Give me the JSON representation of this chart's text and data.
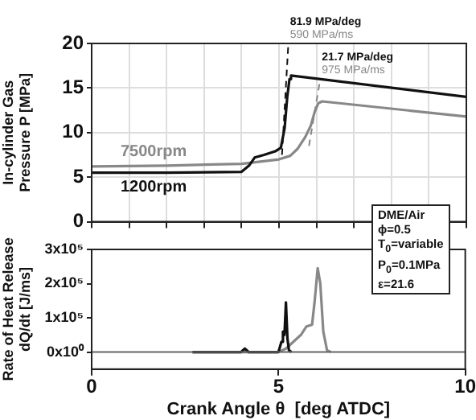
{
  "chart_data": [
    {
      "type": "line",
      "ylabel": "In-cylinder Gas\nPressure P [MPa]",
      "xlim": [
        0,
        10
      ],
      "xticks": [
        0,
        1,
        2,
        3,
        4,
        5,
        6,
        7,
        8,
        9,
        10
      ],
      "ylim": [
        0,
        20
      ],
      "yticks": [
        0,
        5,
        10,
        15,
        20
      ],
      "tick_labels": "y",
      "grid": true,
      "legend": false,
      "marker": "none",
      "series": [
        {
          "name": "1200rpm",
          "color": "#111111",
          "x": [
            0,
            2,
            4.0,
            4.2,
            4.35,
            4.6,
            4.9,
            5.05,
            5.15,
            5.22,
            5.28,
            5.32,
            10
          ],
          "values": [
            5.5,
            5.5,
            5.6,
            6.3,
            7.2,
            7.5,
            7.9,
            8.3,
            10.5,
            14,
            16,
            16.4,
            14.0
          ]
        },
        {
          "name": "7500rpm",
          "color": "#888888",
          "x": [
            0,
            2,
            4,
            5,
            5.3,
            5.5,
            5.7,
            5.85,
            5.95,
            6.05,
            6.15,
            10
          ],
          "values": [
            6.2,
            6.3,
            6.5,
            7.0,
            7.4,
            8.2,
            9.5,
            10.8,
            12.3,
            13.3,
            13.5,
            11.8
          ]
        },
        {
          "type": "line",
          "line_style": "dashed",
          "color": "#111111",
          "x": [
            5.08,
            5.25
          ],
          "values": [
            7.5,
            20
          ]
        },
        {
          "type": "line",
          "line_style": "dashed",
          "color": "#888888",
          "x": [
            5.8,
            6.1
          ],
          "values": [
            8.5,
            16
          ]
        }
      ],
      "annotations": [
        "81.9 MPa/deg",
        "590 MPa/ms",
        "21.7 MPa/deg",
        "975 MPa/ms",
        "DME/Air",
        "ϕ=0.5",
        "T$_{0}$=variable",
        "P$_{0}$=0.1MPa",
        "ε=21.6"
      ]
    },
    {
      "type": "line",
      "xlabel": "Crank Angle θ  [deg ATDC]",
      "ylabel": "Rate of Heat Release\ndQ/dt [J/ms]",
      "xlim": [
        0,
        10
      ],
      "xticks": [
        0,
        5,
        10
      ],
      "ylim": [
        -50000,
        300000
      ],
      "yticks": [
        {
          "value": 0,
          "label": "0x10⁰"
        },
        {
          "value": 100000,
          "label": "1x10⁵"
        },
        {
          "value": 200000,
          "label": "2x10⁵"
        },
        {
          "value": 300000,
          "label": "3x10⁵"
        }
      ],
      "grid": false,
      "legend": false,
      "marker": "none",
      "ref_lines": [
        {
          "axis": "y",
          "value": 0,
          "color": "#666666"
        }
      ],
      "series": [
        {
          "color": "#111111",
          "x": [
            2.7,
            4.0,
            4.1,
            4.2,
            5.0,
            5.08,
            5.12,
            5.16,
            5.2,
            5.24,
            5.28,
            5.35
          ],
          "values": [
            0,
            0,
            10000,
            0,
            0,
            30000,
            60000,
            50000,
            145000,
            40000,
            5000,
            0
          ]
        },
        {
          "color": "#888888",
          "x": [
            2.7,
            5.0,
            5.2,
            5.4,
            5.6,
            5.75,
            5.9,
            5.97,
            6.05,
            6.12,
            6.2,
            6.3,
            6.4
          ],
          "values": [
            0,
            0,
            10000,
            30000,
            50000,
            75000,
            80000,
            150000,
            245000,
            200000,
            60000,
            5000,
            0
          ]
        }
      ]
    }
  ]
}
